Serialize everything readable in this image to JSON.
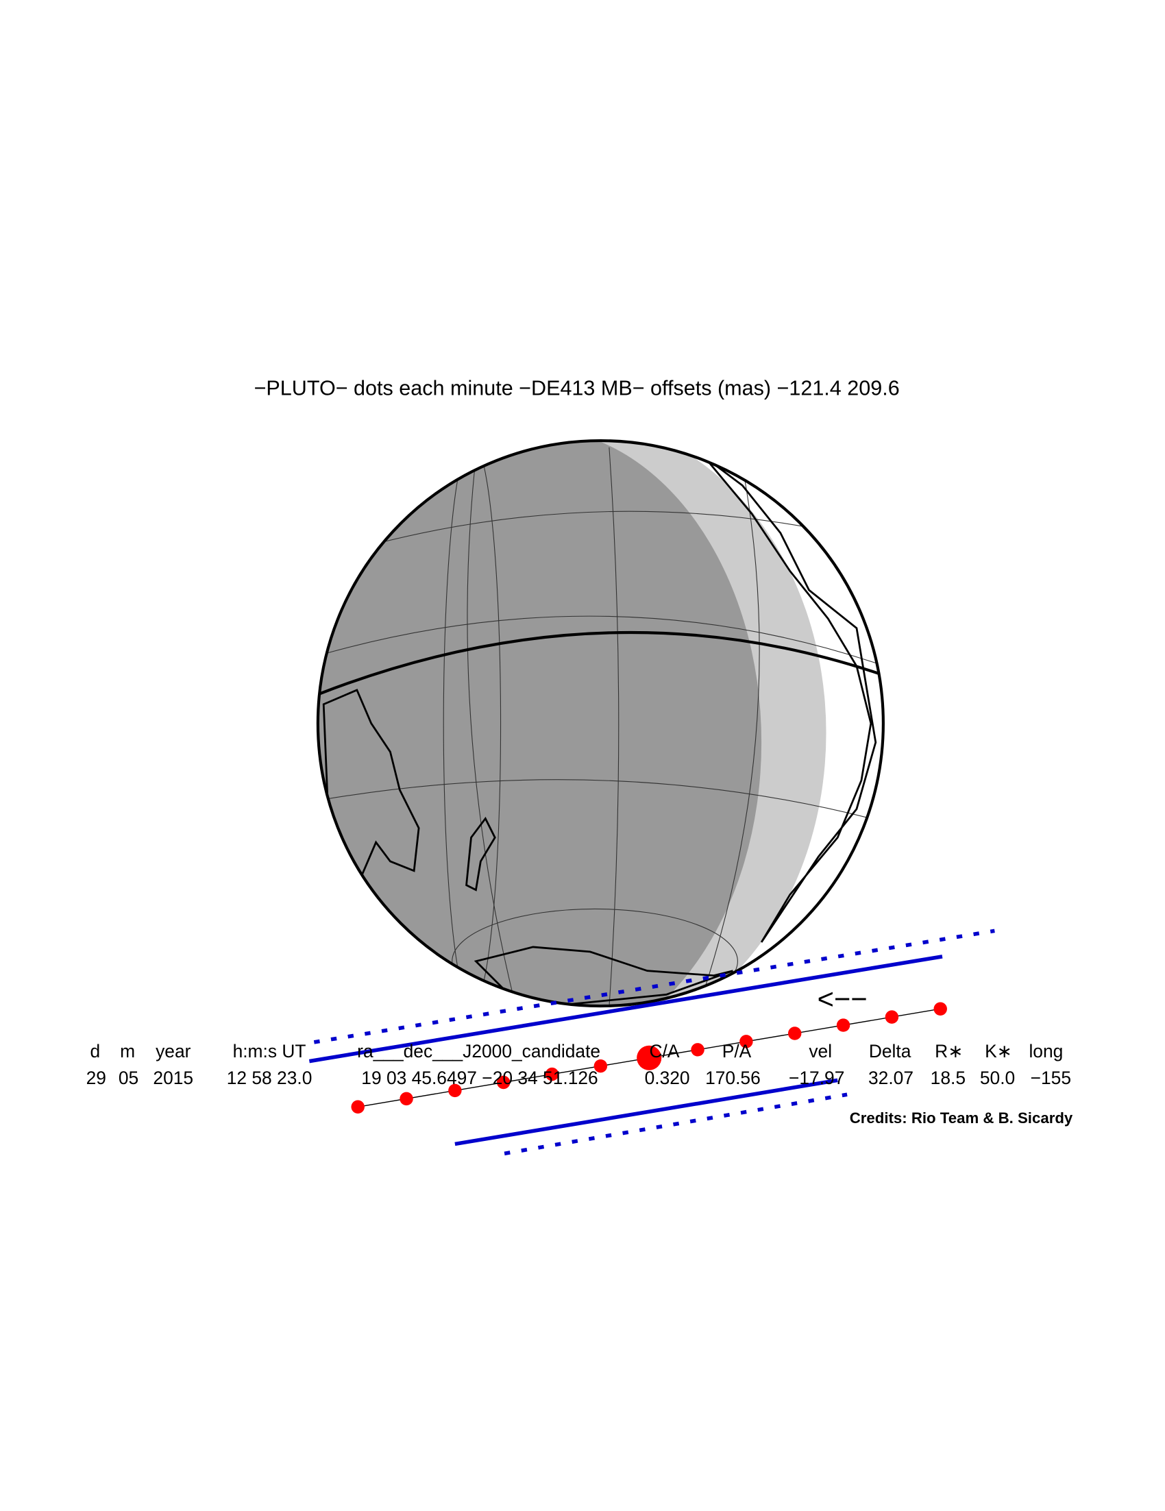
{
  "title": "−PLUTO− dots each minute −DE413 MB− offsets (mas) −121.4  209.6",
  "direction": "<−−",
  "table": {
    "header": [
      "d",
      "m",
      "year",
      "h:m:s UT",
      "ra___dec___J2000_candidate",
      "C/A",
      "P/A",
      "vel",
      "Delta",
      "R∗",
      "K∗",
      "long"
    ],
    "values": [
      "29",
      "05",
      "2015",
      "12 58 23.0",
      "19 03 45.6497 −20 34 51.126",
      "0.320",
      "170.56",
      "−17.97",
      "32.07",
      "18.5",
      "50.0",
      "−155"
    ]
  },
  "credits": "Credits: Rio Team & B. Sicardy"
}
